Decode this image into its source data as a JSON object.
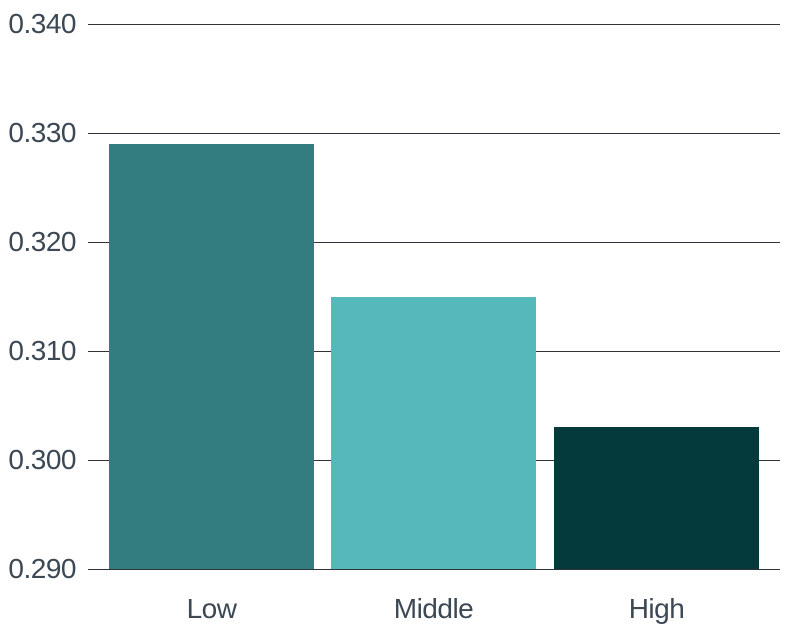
{
  "chart_data": {
    "type": "bar",
    "title": "",
    "xlabel": "",
    "ylabel": "",
    "categories": [
      "Low",
      "Middle",
      "High"
    ],
    "values": [
      0.329,
      0.315,
      0.303
    ],
    "bar_colors": [
      "#337d80",
      "#55b8bb",
      "#043a3c"
    ],
    "ylim": [
      0.29,
      0.34
    ],
    "ytick_values": [
      0.29,
      0.3,
      0.31,
      0.32,
      0.33,
      0.34
    ],
    "ytick_labels": [
      "0.290",
      "0.300",
      "0.310",
      "0.320",
      "0.330",
      "0.340"
    ],
    "grid": true,
    "legend": false,
    "gridline_color": "#2e3439",
    "label_color": "#3c4854",
    "background_color": "#ffffff"
  }
}
